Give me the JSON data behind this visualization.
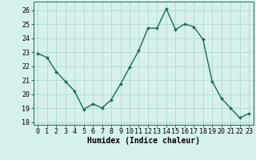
{
  "x": [
    0,
    1,
    2,
    3,
    4,
    5,
    6,
    7,
    8,
    9,
    10,
    11,
    12,
    13,
    14,
    15,
    16,
    17,
    18,
    19,
    20,
    21,
    22,
    23
  ],
  "y": [
    22.9,
    22.6,
    21.6,
    20.9,
    20.2,
    18.9,
    19.3,
    19.0,
    19.6,
    20.7,
    21.9,
    23.1,
    24.7,
    24.7,
    26.1,
    24.6,
    25.0,
    24.8,
    23.9,
    20.9,
    19.7,
    19.0,
    18.3,
    18.6
  ],
  "line_color": "#1a6b5a",
  "marker": "D",
  "marker_size": 2.0,
  "line_width": 1.0,
  "bg_color": "#d6f0ee",
  "grid_color": "#aad4cc",
  "xlabel": "Humidex (Indice chaleur)",
  "xlim": [
    -0.5,
    23.5
  ],
  "ylim": [
    17.8,
    26.6
  ],
  "yticks": [
    18,
    19,
    20,
    21,
    22,
    23,
    24,
    25,
    26
  ],
  "xtick_labels": [
    "0",
    "1",
    "2",
    "3",
    "4",
    "5",
    "6",
    "7",
    "8",
    "9",
    "10",
    "11",
    "12",
    "13",
    "14",
    "15",
    "16",
    "17",
    "18",
    "19",
    "20",
    "21",
    "22",
    "23"
  ],
  "xlabel_fontsize": 7,
  "tick_fontsize": 6
}
